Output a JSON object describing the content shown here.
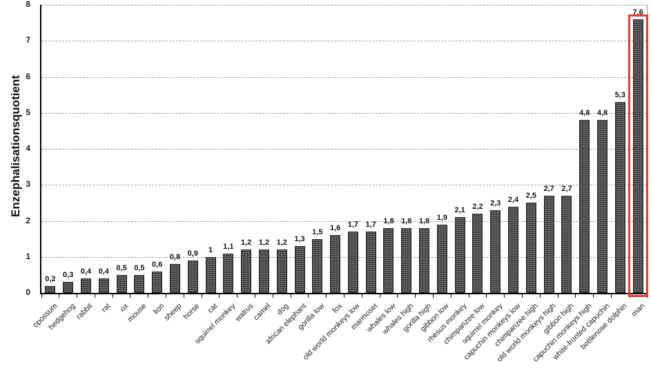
{
  "chart_data": {
    "type": "bar",
    "title": "",
    "xlabel": "",
    "ylabel": "Enzephalisationsquotient",
    "ylim": [
      0,
      8
    ],
    "yticks": [
      0,
      1,
      2,
      3,
      4,
      5,
      6,
      7,
      8
    ],
    "grid": true,
    "legend": "none",
    "decimal_separator": ",",
    "bar_color": "#4b4b4b",
    "bar_border_color": "#222222",
    "grid_color": "#9b9b9b",
    "axis_color": "#000000",
    "highlight": {
      "category": "man",
      "box_color": "#e8392b"
    },
    "categories": [
      "opossum",
      "hedgehog",
      "rabbit",
      "rat",
      "ox",
      "mouse",
      "lion",
      "sheep",
      "horse",
      "cat",
      "squirrel monkey",
      "walrus",
      "camel",
      "dog",
      "african elephant",
      "gorilla low",
      "fox",
      "old world monkeys low",
      "marmoset",
      "whales low",
      "whales high",
      "gorilla high",
      "gibbon low",
      "rhesus monkey",
      "chimpanzee low",
      "squirrel monkey",
      "capuchin monkeys low",
      "chimpanzee high",
      "old world monkeys high",
      "gibbon high",
      "capuchin monkeys high",
      "white-fronted capuchin",
      "bottlenose dolphin",
      "man"
    ],
    "values": [
      0.2,
      0.3,
      0.4,
      0.4,
      0.5,
      0.5,
      0.6,
      0.8,
      0.9,
      1,
      1.1,
      1.2,
      1.2,
      1.2,
      1.3,
      1.5,
      1.6,
      1.7,
      1.7,
      1.8,
      1.8,
      1.8,
      1.9,
      2.1,
      2.2,
      2.3,
      2.4,
      2.5,
      2.7,
      2.7,
      4.8,
      4.8,
      5.3,
      7.6
    ],
    "value_labels": [
      "0,2",
      "0,3",
      "0,4",
      "0,4",
      "0,5",
      "0,5",
      "0,6",
      "0,8",
      "0,9",
      "1",
      "1,1",
      "1,2",
      "1,2",
      "1,2",
      "1,3",
      "1,5",
      "1,6",
      "1,7",
      "1,7",
      "1,8",
      "1,8",
      "1,8",
      "1,9",
      "2,1",
      "2,2",
      "2,3",
      "2,4",
      "2,5",
      "2,7",
      "2,7",
      "4,8",
      "4,8",
      "5,3",
      "7,6"
    ]
  }
}
